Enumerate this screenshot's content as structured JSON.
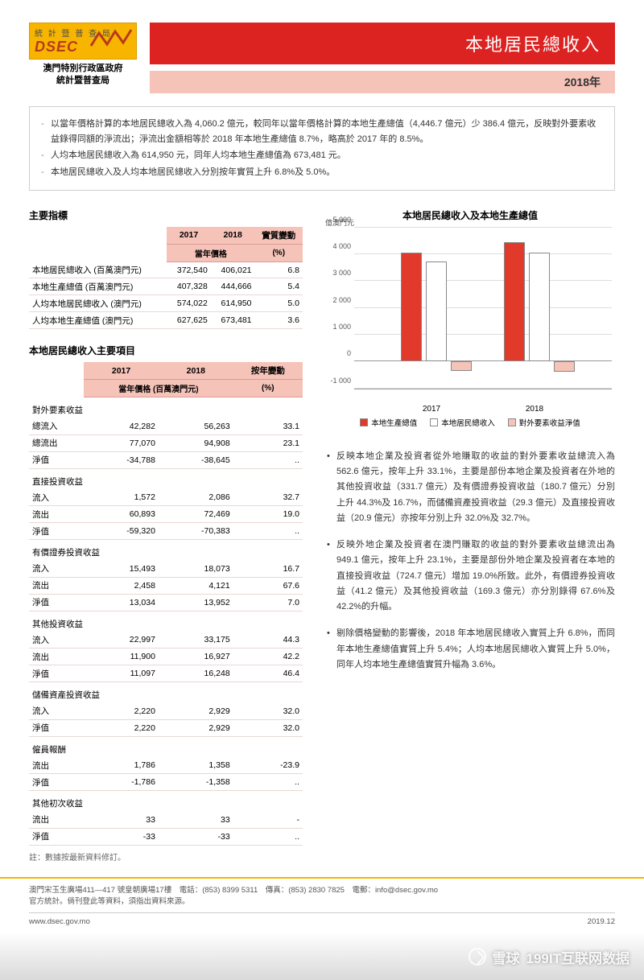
{
  "header": {
    "logo_top": "統 計 暨 普 查 局",
    "logo_text": "DSEC",
    "logo_sub1": "澳門特別行政區政府",
    "logo_sub2": "統計暨普查局",
    "title": "本地居民總收入",
    "year": "2018年"
  },
  "highlights": {
    "p1": "以當年價格計算的本地居民總收入為 4,060.2 億元，較同年以當年價格計算的本地生產總值（4,446.7 億元）少 386.4 億元，反映對外要素收益錄得同額的淨流出；淨流出金額相等於 2018 年本地生產總值 8.7%，略高於 2017 年的 8.5%。",
    "p2": "人均本地居民總收入為 614,950 元，同年人均本地生產總值為 673,481 元。",
    "p3": "本地居民總收入及人均本地居民總收入分別按年實質上升 6.8%及 5.0%。"
  },
  "colors": {
    "red": "#e13a2b",
    "pale": "#f6c3b9",
    "white": "#ffffff",
    "orange": "#f7b500"
  },
  "table1": {
    "title": "主要指標",
    "h_2017": "2017",
    "h_2018": "2018",
    "h_chg": "實質變動",
    "h_pct": "(%)",
    "h_price": "當年價格",
    "rows": [
      {
        "l": "本地居民總收入 (百萬澳門元)",
        "a": "372,540",
        "b": "406,021",
        "c": "6.8"
      },
      {
        "l": "本地生產總值 (百萬澳門元)",
        "a": "407,328",
        "b": "444,666",
        "c": "5.4"
      },
      {
        "l": "人均本地居民總收入 (澳門元)",
        "a": "574,022",
        "b": "614,950",
        "c": "5.0"
      },
      {
        "l": "人均本地生產總值 (澳門元)",
        "a": "627,625",
        "b": "673,481",
        "c": "3.6"
      }
    ]
  },
  "table2": {
    "title": "本地居民總收入主要項目",
    "h_2017": "2017",
    "h_2018": "2018",
    "h_chg": "按年變動",
    "h_pct": "(%)",
    "h_price": "當年價格 (百萬澳門元)",
    "groups": [
      {
        "name": "對外要素收益",
        "rows": [
          {
            "l": "總流入",
            "a": "42,282",
            "b": "56,263",
            "c": "33.1"
          },
          {
            "l": "總流出",
            "a": "77,070",
            "b": "94,908",
            "c": "23.1"
          },
          {
            "l": "淨值",
            "a": "-34,788",
            "b": "-38,645",
            "c": ".."
          }
        ]
      },
      {
        "name": "直接投資收益",
        "rows": [
          {
            "l": "流入",
            "a": "1,572",
            "b": "2,086",
            "c": "32.7"
          },
          {
            "l": "流出",
            "a": "60,893",
            "b": "72,469",
            "c": "19.0"
          },
          {
            "l": "淨值",
            "a": "-59,320",
            "b": "-70,383",
            "c": ".."
          }
        ]
      },
      {
        "name": "有價證券投資收益",
        "rows": [
          {
            "l": "流入",
            "a": "15,493",
            "b": "18,073",
            "c": "16.7"
          },
          {
            "l": "流出",
            "a": "2,458",
            "b": "4,121",
            "c": "67.6"
          },
          {
            "l": "淨值",
            "a": "13,034",
            "b": "13,952",
            "c": "7.0"
          }
        ]
      },
      {
        "name": "其他投資收益",
        "rows": [
          {
            "l": "流入",
            "a": "22,997",
            "b": "33,175",
            "c": "44.3"
          },
          {
            "l": "流出",
            "a": "11,900",
            "b": "16,927",
            "c": "42.2"
          },
          {
            "l": "淨值",
            "a": "11,097",
            "b": "16,248",
            "c": "46.4"
          }
        ]
      },
      {
        "name": "儲備資產投資收益",
        "rows": [
          {
            "l": "流入",
            "a": "2,220",
            "b": "2,929",
            "c": "32.0"
          },
          {
            "l": "淨值",
            "a": "2,220",
            "b": "2,929",
            "c": "32.0"
          }
        ]
      },
      {
        "name": "僱員報酬",
        "rows": [
          {
            "l": "流出",
            "a": "1,786",
            "b": "1,358",
            "c": "-23.9"
          },
          {
            "l": "淨值",
            "a": "-1,786",
            "b": "-1,358",
            "c": ".."
          }
        ]
      },
      {
        "name": "其他初次收益",
        "rows": [
          {
            "l": "流出",
            "a": "33",
            "b": "33",
            "c": "-"
          },
          {
            "l": "淨值",
            "a": "-33",
            "b": "-33",
            "c": ".."
          }
        ]
      }
    ],
    "note": "註：數據按最新資料修訂。"
  },
  "chart": {
    "title": "本地居民總收入及本地生產總值",
    "unit": "億澳門元",
    "y_min": -1000,
    "y_max": 5000,
    "y_step": 1000,
    "categories": [
      "2017",
      "2018"
    ],
    "series": [
      {
        "name": "本地生產總值",
        "color": "#e13a2b",
        "values": [
          4073,
          4447
        ]
      },
      {
        "name": "本地居民總收入",
        "color": "#ffffff",
        "values": [
          3725,
          4060
        ]
      },
      {
        "name": "對外要素收益淨值",
        "color": "#f6c3b9",
        "values": [
          -348,
          -386
        ]
      }
    ],
    "legend": [
      "本地生產總值",
      "本地居民總收入",
      "對外要素收益淨值"
    ]
  },
  "notes": {
    "p1": "反映本地企業及投資者從外地賺取的收益的對外要素收益總流入為 562.6 億元，按年上升 33.1%，主要是部份本地企業及投資者在外地的其他投資收益（331.7 億元）及有價證券投資收益（180.7 億元）分別上升 44.3%及 16.7%，而儲備資產投資收益（29.3 億元）及直接投資收益（20.9 億元）亦按年分別上升 32.0%及 32.7%。",
    "p2": "反映外地企業及投資者在澳門賺取的收益的對外要素收益總流出為 949.1 億元，按年上升 23.1%，主要是部份外地企業及投資者在本地的直接投資收益（724.7 億元）增加 19.0%所致。此外，有價證券投資收益（41.2 億元）及其他投資收益（169.3 億元）亦分別錄得 67.6%及 42.2%的升幅。",
    "p3": "剔除價格變動的影響後，2018 年本地居民總收入實質上升 6.8%，而同年本地生產總值實質上升 5.4%；人均本地居民總收入實質上升 5.0%，同年人均本地生產總值實質升幅為 3.6%。"
  },
  "footer": {
    "addr": "澳門宋玉生廣場411—417 號皇朝廣場17樓　電話：(853) 8399 5311　傳真：(853) 2830 7825　電郵：info@dsec.gov.mo",
    "addr2": "官方統計。倘刊登此等資料，須指出資料來源。",
    "url": "www.dsec.gov.mo",
    "date": "2019.12"
  },
  "watermark": {
    "a": "雪球",
    "b": "199IT互联网数据"
  }
}
